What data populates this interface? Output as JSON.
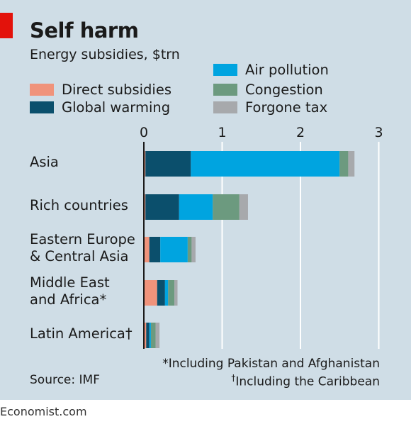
{
  "title": "Self harm",
  "subtitle": "Energy subsidies, $trn",
  "chart_data": {
    "type": "bar",
    "orientation": "horizontal",
    "stacked": true,
    "categories": [
      "Asia",
      "Rich countries",
      "Eastern Europe & Central Asia",
      "Middle East and Africa*",
      "Latin America†"
    ],
    "category_lines": [
      [
        "Asia"
      ],
      [
        "Rich countries"
      ],
      [
        "Eastern Europe",
        "& Central Asia"
      ],
      [
        "Middle East",
        "and Africa*"
      ],
      [
        "Latin America†"
      ]
    ],
    "series": [
      {
        "name": "Direct subsidies",
        "color": "#f0937b",
        "values": [
          0.02,
          0.02,
          0.07,
          0.17,
          0.03
        ]
      },
      {
        "name": "Global warming",
        "color": "#0b4f6c",
        "values": [
          0.58,
          0.43,
          0.14,
          0.1,
          0.04
        ]
      },
      {
        "name": "Air pollution",
        "color": "#00a4e0",
        "values": [
          1.9,
          0.43,
          0.35,
          0.04,
          0.02
        ]
      },
      {
        "name": "Congestion",
        "color": "#6c9a7f",
        "values": [
          0.11,
          0.34,
          0.05,
          0.08,
          0.06
        ]
      },
      {
        "name": "Forgone tax",
        "color": "#a7a9ac",
        "values": [
          0.08,
          0.11,
          0.05,
          0.04,
          0.05
        ]
      }
    ],
    "xlim": [
      0,
      3
    ],
    "xticks": [
      "0",
      "1",
      "2",
      "3"
    ],
    "xlabel": "",
    "ylabel": "",
    "legend_placement": "top",
    "grid": true
  },
  "footnote1": "*Including Pakistan and Afghanistan",
  "footnote2": "Including the Caribbean",
  "footnote2_mark": "†",
  "source": "Source: IMF",
  "brand": "Economist.com"
}
